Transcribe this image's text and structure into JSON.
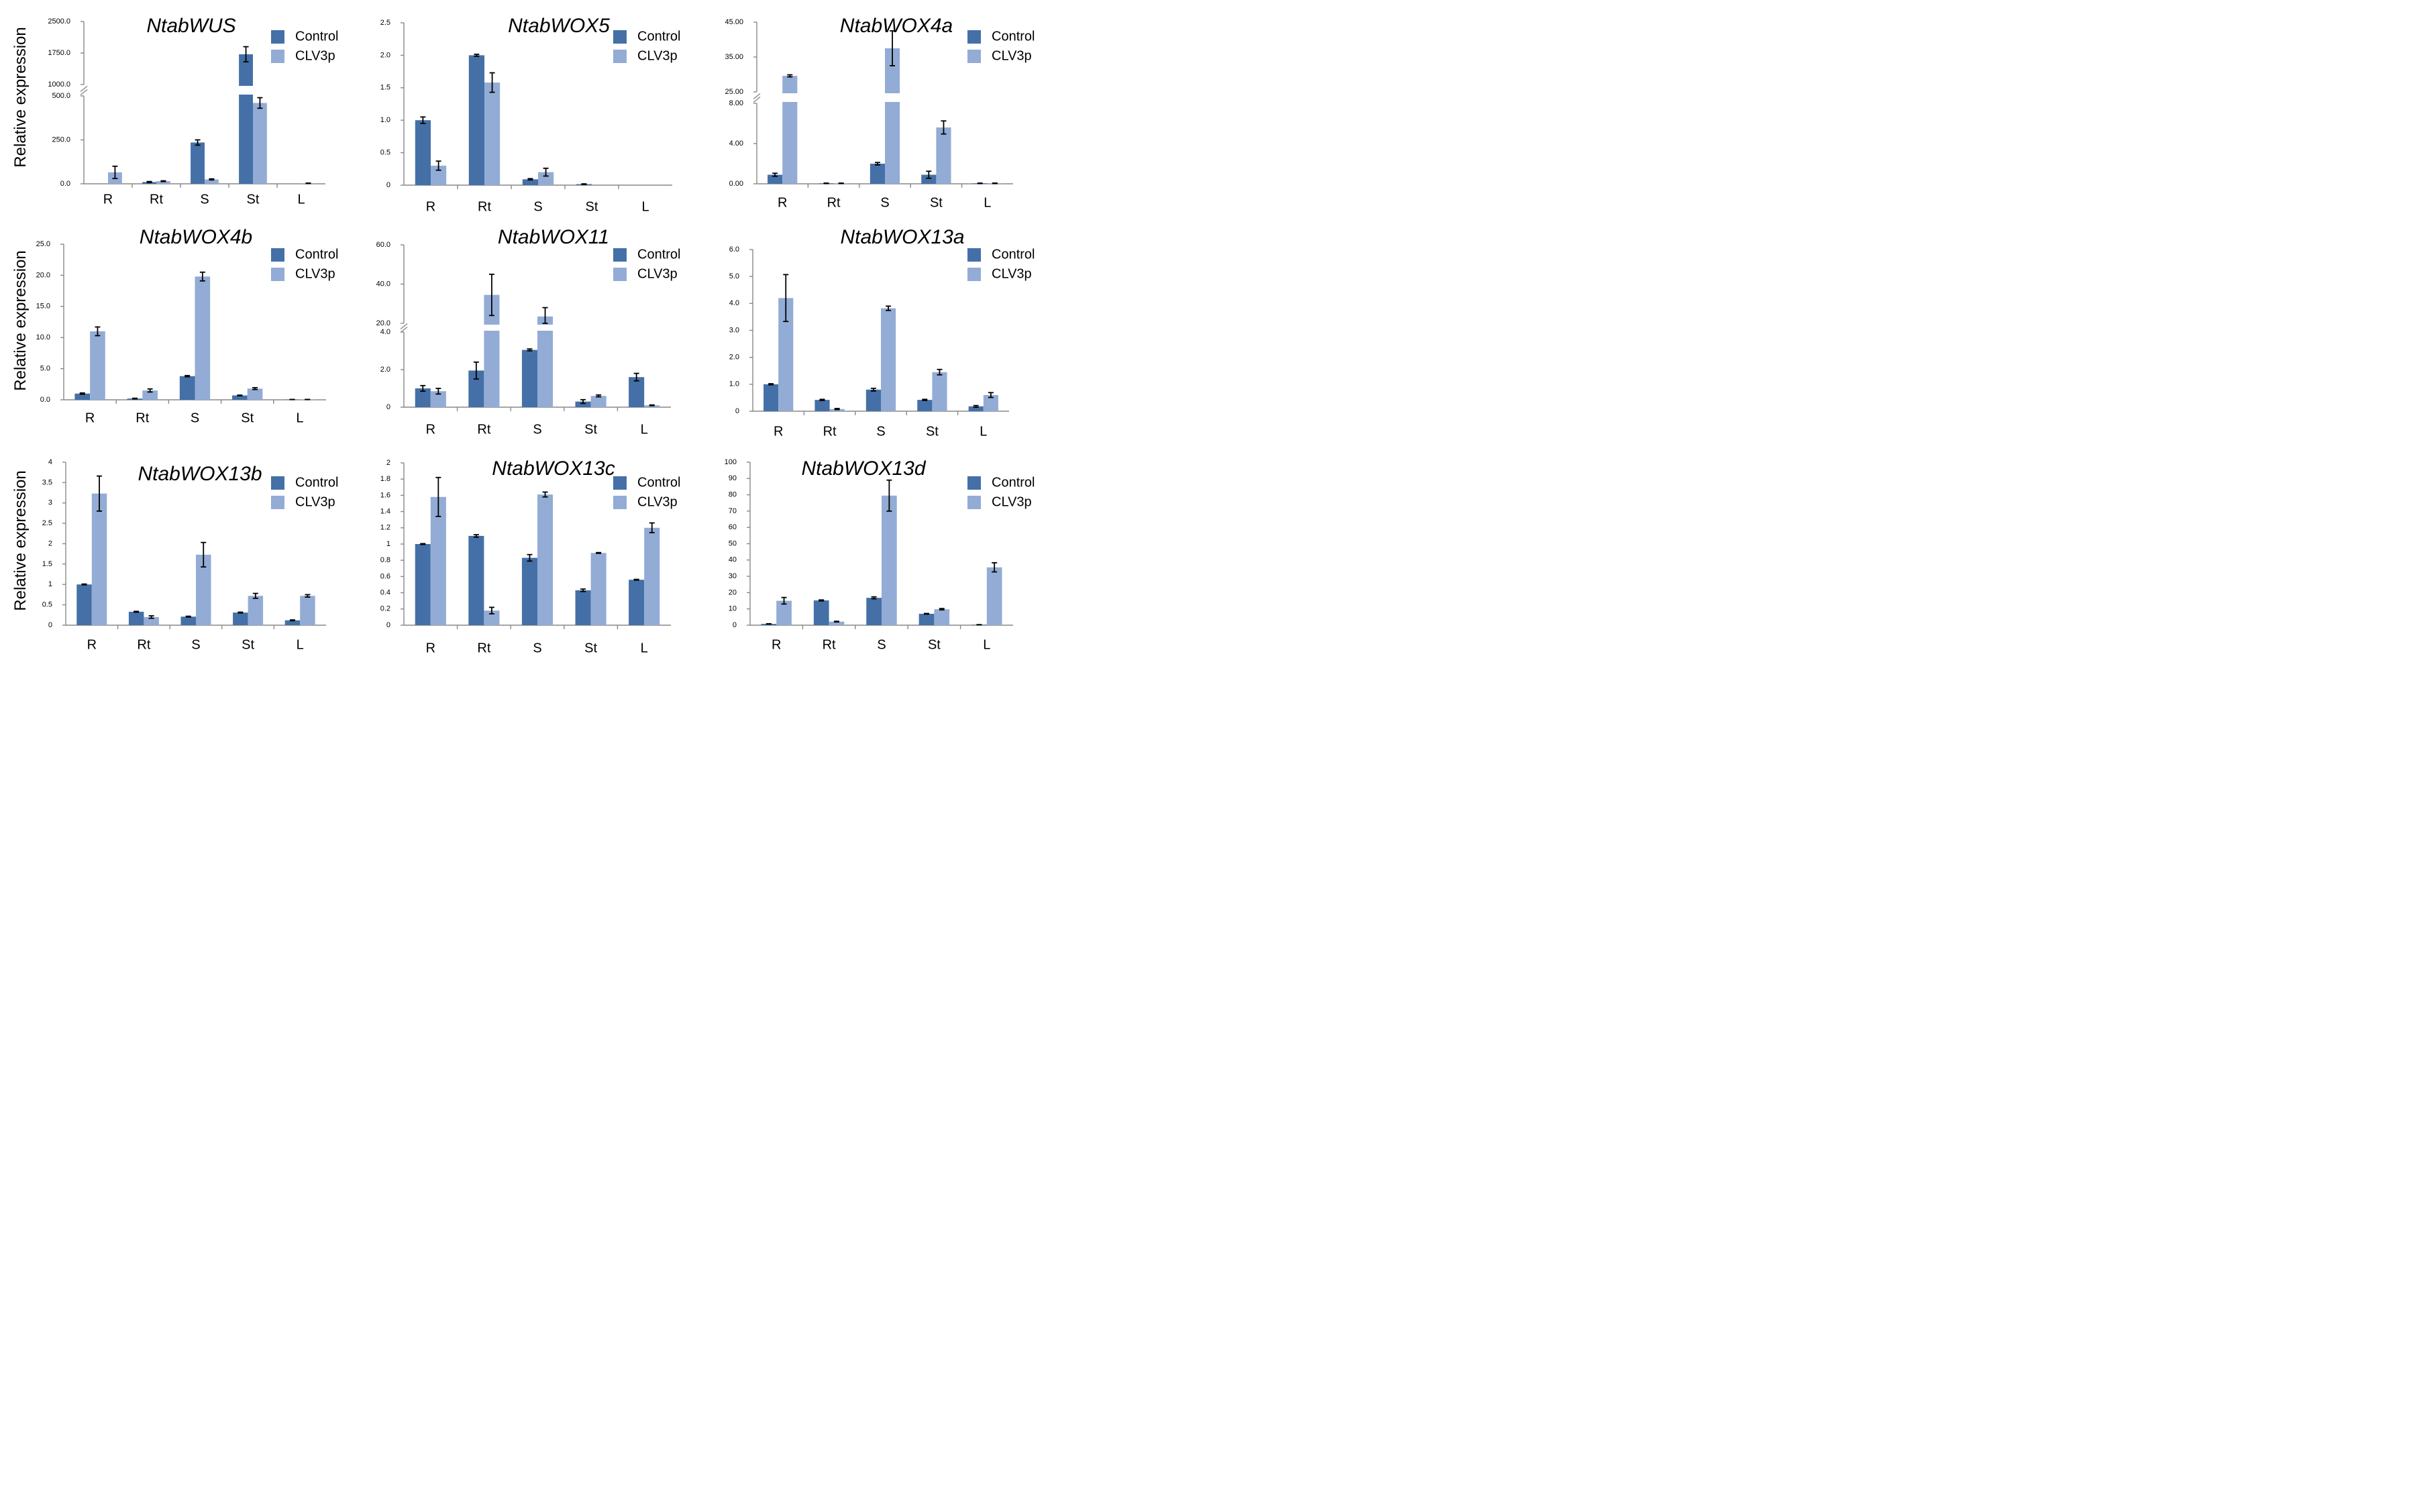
{
  "figure": {
    "ylabel": "Relative expression"
  },
  "chart_data": [
    {
      "type": "bar",
      "title": "NtabWUS",
      "categories": [
        "R",
        "Rt",
        "S",
        "St",
        "L"
      ],
      "series": [
        {
          "name": "Control",
          "values": [
            0,
            10,
            235,
            1720,
            0
          ],
          "errors": [
            0,
            3,
            15,
            180,
            0
          ]
        },
        {
          "name": "CLV3p",
          "values": [
            65,
            15,
            25,
            460,
            3
          ],
          "errors": [
            35,
            2,
            3,
            30,
            1
          ]
        }
      ],
      "axis_break": {
        "lower_max": 500,
        "upper_min": 1000,
        "upper_max": 2500
      },
      "ticks": [
        {
          "v": 0,
          "label": "0.0"
        },
        {
          "v": 250,
          "label": "250.0"
        },
        {
          "v": 500,
          "label": "500.0"
        },
        {
          "v": 1000,
          "label": "1000.0"
        },
        {
          "v": 1750,
          "label": "1750.0"
        },
        {
          "v": 2500,
          "label": "2500.0"
        }
      ]
    },
    {
      "type": "bar",
      "title": "NtabWOX5",
      "categories": [
        "R",
        "Rt",
        "S",
        "St",
        "L"
      ],
      "series": [
        {
          "name": "Control",
          "values": [
            1.0,
            2.0,
            0.09,
            0.015,
            0
          ],
          "errors": [
            0.05,
            0.015,
            0.01,
            0.005,
            0
          ]
        },
        {
          "name": "CLV3p",
          "values": [
            0.3,
            1.58,
            0.2,
            0,
            0
          ],
          "errors": [
            0.07,
            0.15,
            0.06,
            0,
            0
          ]
        }
      ],
      "ylim": [
        0,
        2.5
      ],
      "ticks": [
        {
          "v": 0,
          "label": "0"
        },
        {
          "v": 0.5,
          "label": "0.5"
        },
        {
          "v": 1,
          "label": "1.0"
        },
        {
          "v": 1.5,
          "label": "1.5"
        },
        {
          "v": 2,
          "label": "2.0"
        },
        {
          "v": 2.5,
          "label": "2.5"
        }
      ]
    },
    {
      "type": "bar",
      "title": "NtabWOX4a",
      "categories": [
        "R",
        "Rt",
        "S",
        "St",
        "L"
      ],
      "series": [
        {
          "name": "Control",
          "values": [
            0.9,
            0.05,
            2.0,
            0.9,
            0.05
          ],
          "errors": [
            0.15,
            0.02,
            0.12,
            0.35,
            0.02
          ]
        },
        {
          "name": "CLV3p",
          "values": [
            29.6,
            0.05,
            37.5,
            5.6,
            0.05
          ],
          "errors": [
            0.3,
            0.02,
            5.0,
            0.65,
            0.02
          ]
        }
      ],
      "axis_break": {
        "lower_max": 8,
        "upper_min": 25,
        "upper_max": 45
      },
      "ticks": [
        {
          "v": 0,
          "label": "0.00"
        },
        {
          "v": 4,
          "label": "4.00"
        },
        {
          "v": 8,
          "label": "8.00"
        },
        {
          "v": 25,
          "label": "25.00"
        },
        {
          "v": 35,
          "label": "35.00"
        },
        {
          "v": 45,
          "label": "45.00"
        }
      ]
    },
    {
      "type": "bar",
      "title": "NtabWOX4b",
      "categories": [
        "R",
        "Rt",
        "S",
        "St",
        "L"
      ],
      "series": [
        {
          "name": "Control",
          "values": [
            1.0,
            0.2,
            3.8,
            0.7,
            0.05
          ],
          "errors": [
            0.1,
            0.05,
            0.1,
            0.05,
            0.01
          ]
        },
        {
          "name": "CLV3p",
          "values": [
            11.0,
            1.5,
            19.8,
            1.8,
            0.05
          ],
          "errors": [
            0.7,
            0.25,
            0.7,
            0.15,
            0.01
          ]
        }
      ],
      "ylim": [
        0,
        25
      ],
      "ticks": [
        {
          "v": 0,
          "label": "0.0"
        },
        {
          "v": 5,
          "label": "5.0"
        },
        {
          "v": 10,
          "label": "10.0"
        },
        {
          "v": 15,
          "label": "15.0"
        },
        {
          "v": 20,
          "label": "20.0"
        },
        {
          "v": 25,
          "label": "25.0"
        }
      ]
    },
    {
      "type": "bar",
      "title": "NtabWOX11",
      "categories": [
        "R",
        "Rt",
        "S",
        "St",
        "L"
      ],
      "series": [
        {
          "name": "Control",
          "values": [
            1.0,
            1.95,
            3.05,
            0.3,
            1.6
          ],
          "errors": [
            0.15,
            0.45,
            0.05,
            0.1,
            0.2
          ]
        },
        {
          "name": "CLV3p",
          "values": [
            0.85,
            34.5,
            23.5,
            0.6,
            0.1
          ],
          "errors": [
            0.15,
            10.5,
            4.5,
            0.05,
            0.02
          ]
        }
      ],
      "axis_break": {
        "lower_max": 4,
        "upper_min": 20,
        "upper_max": 60
      },
      "ticks": [
        {
          "v": 0,
          "label": "0"
        },
        {
          "v": 2,
          "label": "2.0"
        },
        {
          "v": 4,
          "label": "4.0"
        },
        {
          "v": 20,
          "label": "20.0"
        },
        {
          "v": 40,
          "label": "40.0"
        },
        {
          "v": 60,
          "label": "60.0"
        }
      ]
    },
    {
      "type": "bar",
      "title": "NtabWOX13a",
      "categories": [
        "R",
        "Rt",
        "S",
        "St",
        "L"
      ],
      "series": [
        {
          "name": "Control",
          "values": [
            1.0,
            0.42,
            0.8,
            0.42,
            0.18
          ],
          "errors": [
            0.02,
            0.02,
            0.05,
            0.02,
            0.03
          ]
        },
        {
          "name": "CLV3p",
          "values": [
            4.2,
            0.08,
            3.82,
            1.45,
            0.6
          ],
          "errors": [
            0.87,
            0.02,
            0.08,
            0.1,
            0.09
          ]
        }
      ],
      "ylim": [
        0,
        6
      ],
      "ticks": [
        {
          "v": 0,
          "label": "0"
        },
        {
          "v": 1,
          "label": "1.0"
        },
        {
          "v": 2,
          "label": "2.0"
        },
        {
          "v": 3,
          "label": "3.0"
        },
        {
          "v": 4,
          "label": "4.0"
        },
        {
          "v": 5,
          "label": "5.0"
        },
        {
          "v": 6,
          "label": "6.0"
        }
      ]
    },
    {
      "type": "bar",
      "title": "NtabWOX13b",
      "categories": [
        "R",
        "Rt",
        "S",
        "St",
        "L"
      ],
      "series": [
        {
          "name": "Control",
          "values": [
            1.0,
            0.33,
            0.21,
            0.31,
            0.12
          ],
          "errors": [
            0.01,
            0.01,
            0.01,
            0.01,
            0.01
          ]
        },
        {
          "name": "CLV3p",
          "values": [
            3.23,
            0.2,
            1.73,
            0.72,
            0.72
          ],
          "errors": [
            0.43,
            0.03,
            0.3,
            0.06,
            0.03
          ]
        }
      ],
      "ylim": [
        0,
        4
      ],
      "ticks": [
        {
          "v": 0,
          "label": "0"
        },
        {
          "v": 0.5,
          "label": "0.5"
        },
        {
          "v": 1,
          "label": "1"
        },
        {
          "v": 1.5,
          "label": "1.5"
        },
        {
          "v": 2,
          "label": "2"
        },
        {
          "v": 2.5,
          "label": "2.5"
        },
        {
          "v": 3,
          "label": "3"
        },
        {
          "v": 3.5,
          "label": "3.5"
        },
        {
          "v": 4,
          "label": "4"
        }
      ]
    },
    {
      "type": "bar",
      "title": "NtabWOX13c",
      "categories": [
        "R",
        "Rt",
        "S",
        "St",
        "L"
      ],
      "series": [
        {
          "name": "Control",
          "values": [
            1.0,
            1.1,
            0.83,
            0.43,
            0.56
          ],
          "errors": [
            0.005,
            0.015,
            0.04,
            0.015,
            0.005
          ]
        },
        {
          "name": "CLV3p",
          "values": [
            1.58,
            0.18,
            1.61,
            0.89,
            1.2
          ],
          "errors": [
            0.24,
            0.04,
            0.03,
            0.005,
            0.06
          ]
        }
      ],
      "ylim": [
        0,
        2
      ],
      "ticks": [
        {
          "v": 0,
          "label": "0"
        },
        {
          "v": 0.2,
          "label": "0.2"
        },
        {
          "v": 0.4,
          "label": "0.4"
        },
        {
          "v": 0.6,
          "label": "0.6"
        },
        {
          "v": 0.8,
          "label": "0.8"
        },
        {
          "v": 1,
          "label": "1"
        },
        {
          "v": 1.2,
          "label": "1.2"
        },
        {
          "v": 1.4,
          "label": "1.4"
        },
        {
          "v": 1.6,
          "label": "1.6"
        },
        {
          "v": 1.8,
          "label": "1.8"
        },
        {
          "v": 2,
          "label": "2"
        }
      ]
    },
    {
      "type": "bar",
      "title": "NtabWOX13d",
      "categories": [
        "R",
        "Rt",
        "S",
        "St",
        "L"
      ],
      "series": [
        {
          "name": "Control",
          "values": [
            0.8,
            15.2,
            16.8,
            7.0,
            0.3
          ],
          "errors": [
            0.1,
            0.3,
            0.6,
            0.2,
            0.05
          ]
        },
        {
          "name": "CLV3p",
          "values": [
            15.0,
            2.2,
            79.5,
            9.8,
            35.5
          ],
          "errors": [
            2.0,
            0.2,
            9.5,
            0.4,
            2.8
          ]
        }
      ],
      "ylim": [
        0,
        100
      ],
      "ticks": [
        {
          "v": 0,
          "label": "0"
        },
        {
          "v": 10,
          "label": "10"
        },
        {
          "v": 20,
          "label": "20"
        },
        {
          "v": 30,
          "label": "30"
        },
        {
          "v": 40,
          "label": "40"
        },
        {
          "v": 50,
          "label": "50"
        },
        {
          "v": 60,
          "label": "60"
        },
        {
          "v": 70,
          "label": "70"
        },
        {
          "v": 80,
          "label": "80"
        },
        {
          "v": 90,
          "label": "90"
        },
        {
          "v": 100,
          "label": "100"
        }
      ]
    }
  ],
  "colors": {
    "control": "#4470a7",
    "clv3p": "#93acd5"
  }
}
